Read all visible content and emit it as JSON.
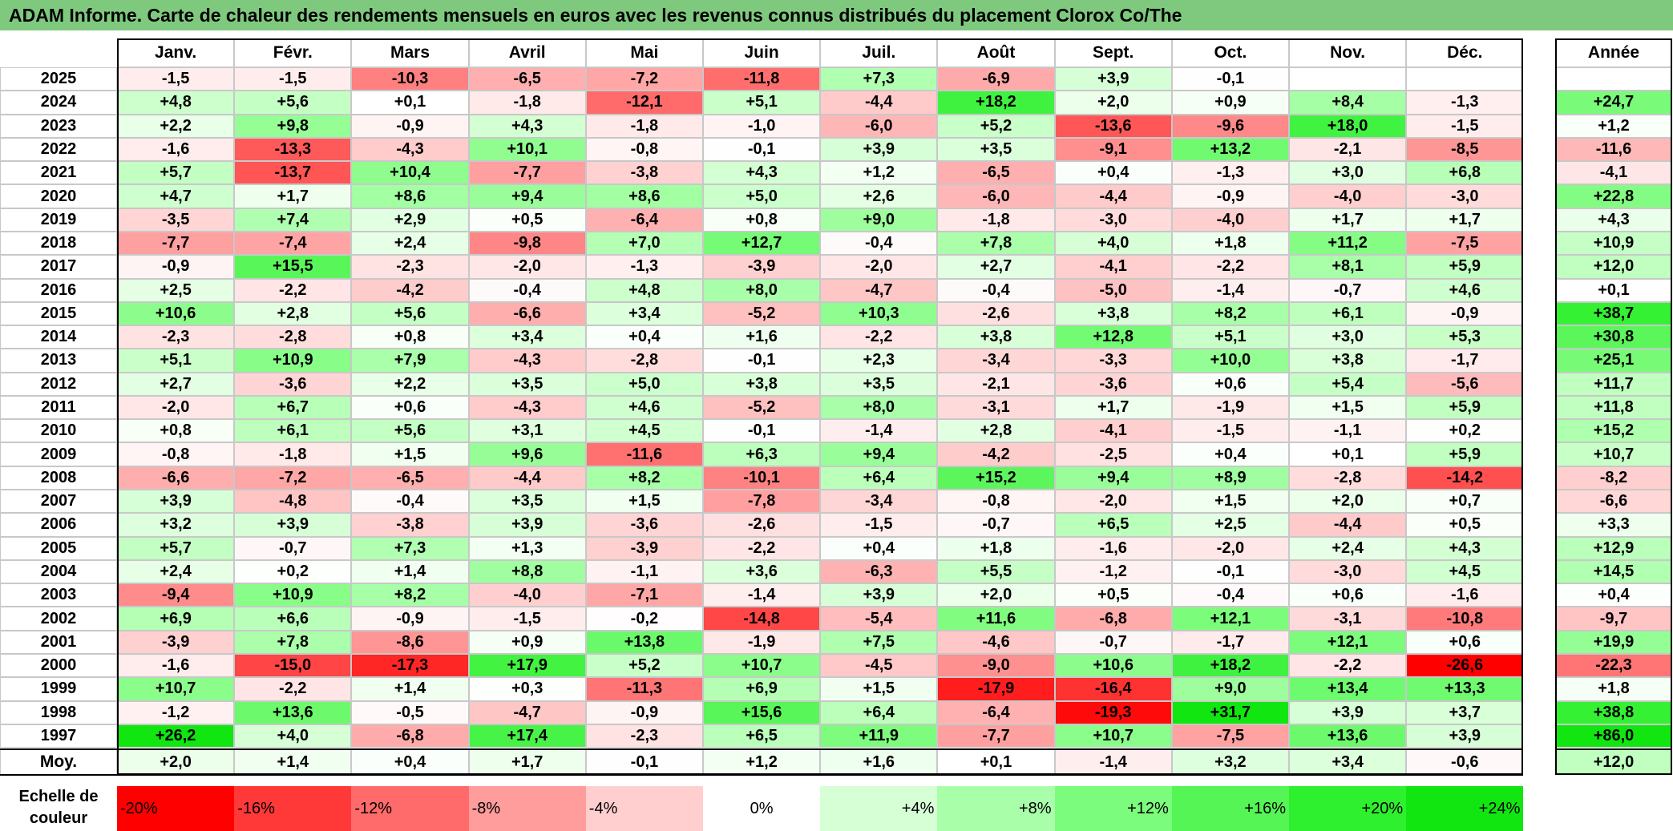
{
  "title": "ADAM Informe. Carte de chaleur des rendements mensuels en euros avec les revenus connus distribués du placement Clorox Co/The",
  "chart_data": {
    "type": "heatmap",
    "months": [
      "Janv.",
      "Févr.",
      "Mars",
      "Avril",
      "Mai",
      "Juin",
      "Juil.",
      "Août",
      "Sept.",
      "Oct.",
      "Nov.",
      "Déc."
    ],
    "year_header": "Année",
    "rows": [
      {
        "year": "2025",
        "values": [
          -1.5,
          -1.5,
          -10.3,
          -6.5,
          -7.2,
          -11.8,
          7.3,
          -6.9,
          3.9,
          -0.1,
          null,
          null
        ],
        "annual": null
      },
      {
        "year": "2024",
        "values": [
          4.8,
          5.6,
          0.1,
          -1.8,
          -12.1,
          5.1,
          -4.4,
          18.2,
          2.0,
          0.9,
          8.4,
          -1.3
        ],
        "annual": 24.7
      },
      {
        "year": "2023",
        "values": [
          2.2,
          9.8,
          -0.9,
          4.3,
          -1.8,
          -1.0,
          -6.0,
          5.2,
          -13.6,
          -9.6,
          18.0,
          -1.5
        ],
        "annual": 1.2
      },
      {
        "year": "2022",
        "values": [
          -1.6,
          -13.3,
          -4.3,
          10.1,
          -0.8,
          -0.1,
          3.9,
          3.5,
          -9.1,
          13.2,
          -2.1,
          -8.5
        ],
        "annual": -11.6
      },
      {
        "year": "2021",
        "values": [
          5.7,
          -13.7,
          10.4,
          -7.7,
          -3.8,
          4.3,
          1.2,
          -6.5,
          0.4,
          -1.3,
          3.0,
          6.8
        ],
        "annual": -4.1
      },
      {
        "year": "2020",
        "values": [
          4.7,
          1.7,
          8.6,
          9.4,
          8.6,
          5.0,
          2.6,
          -6.0,
          -4.4,
          -0.9,
          -4.0,
          -3.0
        ],
        "annual": 22.8
      },
      {
        "year": "2019",
        "values": [
          -3.5,
          7.4,
          2.9,
          0.5,
          -6.4,
          0.8,
          9.0,
          -1.8,
          -3.0,
          -4.0,
          1.7,
          1.7
        ],
        "annual": 4.3
      },
      {
        "year": "2018",
        "values": [
          -7.7,
          -7.4,
          2.4,
          -9.8,
          7.0,
          12.7,
          -0.4,
          7.8,
          4.0,
          1.8,
          11.2,
          -7.5
        ],
        "annual": 10.9
      },
      {
        "year": "2017",
        "values": [
          -0.9,
          15.5,
          -2.3,
          -2.0,
          -1.3,
          -3.9,
          -2.0,
          2.7,
          -4.1,
          -2.2,
          8.1,
          5.9
        ],
        "annual": 12.0
      },
      {
        "year": "2016",
        "values": [
          2.5,
          -2.2,
          -4.2,
          -0.4,
          4.8,
          8.0,
          -4.7,
          -0.4,
          -5.0,
          -1.4,
          -0.7,
          4.6
        ],
        "annual": 0.1
      },
      {
        "year": "2015",
        "values": [
          10.6,
          2.8,
          5.6,
          -6.6,
          3.4,
          -5.2,
          10.3,
          -2.6,
          3.8,
          8.2,
          6.1,
          -0.9
        ],
        "annual": 38.7
      },
      {
        "year": "2014",
        "values": [
          -2.3,
          -2.8,
          0.8,
          3.4,
          0.4,
          1.6,
          -2.2,
          3.8,
          12.8,
          5.1,
          3.0,
          5.3
        ],
        "annual": 30.8
      },
      {
        "year": "2013",
        "values": [
          5.1,
          10.9,
          7.9,
          -4.3,
          -2.8,
          -0.1,
          2.3,
          -3.4,
          -3.3,
          10.0,
          3.8,
          -1.7
        ],
        "annual": 25.1
      },
      {
        "year": "2012",
        "values": [
          2.7,
          -3.6,
          2.2,
          3.5,
          5.0,
          3.8,
          3.5,
          -2.1,
          -3.6,
          0.6,
          5.4,
          -5.6
        ],
        "annual": 11.7
      },
      {
        "year": "2011",
        "values": [
          -2.0,
          6.7,
          0.6,
          -4.3,
          4.6,
          -5.2,
          8.0,
          -3.1,
          1.7,
          -1.9,
          1.5,
          5.9
        ],
        "annual": 11.8
      },
      {
        "year": "2010",
        "values": [
          0.8,
          6.1,
          5.6,
          3.1,
          4.5,
          -0.1,
          -1.4,
          2.8,
          -4.1,
          -1.5,
          -1.1,
          0.2
        ],
        "annual": 15.2
      },
      {
        "year": "2009",
        "values": [
          -0.8,
          -1.8,
          1.5,
          9.6,
          -11.6,
          6.3,
          9.4,
          -4.2,
          -2.5,
          0.4,
          0.1,
          5.9
        ],
        "annual": 10.7
      },
      {
        "year": "2008",
        "values": [
          -6.6,
          -7.2,
          -6.5,
          -4.4,
          8.2,
          -10.1,
          6.4,
          15.2,
          9.4,
          8.9,
          -2.8,
          -14.2
        ],
        "annual": -8.2
      },
      {
        "year": "2007",
        "values": [
          3.9,
          -4.8,
          -0.4,
          3.5,
          1.5,
          -7.8,
          -3.4,
          -0.8,
          -2.0,
          1.5,
          2.0,
          0.7
        ],
        "annual": -6.6
      },
      {
        "year": "2006",
        "values": [
          3.2,
          3.9,
          -3.8,
          3.9,
          -3.6,
          -2.6,
          -1.5,
          -0.7,
          6.5,
          2.5,
          -4.4,
          0.5
        ],
        "annual": 3.3
      },
      {
        "year": "2005",
        "values": [
          5.7,
          -0.7,
          7.3,
          1.3,
          -3.9,
          -2.2,
          0.4,
          1.8,
          -1.6,
          -2.0,
          2.4,
          4.3
        ],
        "annual": 12.9
      },
      {
        "year": "2004",
        "values": [
          2.4,
          0.2,
          1.4,
          8.8,
          -1.1,
          3.6,
          -6.3,
          5.5,
          -1.2,
          -0.1,
          -3.0,
          4.5
        ],
        "annual": 14.5
      },
      {
        "year": "2003",
        "values": [
          -9.4,
          10.9,
          8.2,
          -4.0,
          -7.1,
          -1.4,
          3.9,
          2.0,
          0.5,
          -0.4,
          0.6,
          -1.6
        ],
        "annual": 0.4
      },
      {
        "year": "2002",
        "values": [
          6.9,
          6.6,
          -0.9,
          -1.5,
          -0.2,
          -14.8,
          -5.4,
          11.6,
          -6.8,
          12.1,
          -3.1,
          -10.8
        ],
        "annual": -9.7
      },
      {
        "year": "2001",
        "values": [
          -3.9,
          7.8,
          -8.6,
          0.9,
          13.8,
          -1.9,
          7.5,
          -4.6,
          -0.7,
          -1.7,
          12.1,
          0.6
        ],
        "annual": 19.9
      },
      {
        "year": "2000",
        "values": [
          -1.6,
          -15.0,
          -17.3,
          17.9,
          5.2,
          10.7,
          -4.5,
          -9.0,
          10.6,
          18.2,
          -2.2,
          -26.6
        ],
        "annual": -22.3
      },
      {
        "year": "1999",
        "values": [
          10.7,
          -2.2,
          1.4,
          0.3,
          -11.3,
          6.9,
          1.5,
          -17.9,
          -16.4,
          9.0,
          13.4,
          13.3
        ],
        "annual": 1.8
      },
      {
        "year": "1998",
        "values": [
          -1.2,
          13.6,
          -0.5,
          -4.7,
          -0.9,
          15.6,
          6.4,
          -6.4,
          -19.3,
          31.7,
          3.9,
          3.7
        ],
        "annual": 38.8
      },
      {
        "year": "1997",
        "values": [
          26.2,
          4.0,
          -6.8,
          17.4,
          -2.3,
          6.5,
          11.9,
          -7.7,
          10.7,
          -7.5,
          13.6,
          3.9
        ],
        "annual": 86.0
      }
    ],
    "average": {
      "label": "Moy.",
      "values": [
        2.0,
        1.4,
        0.4,
        1.7,
        -0.1,
        1.2,
        1.6,
        0.1,
        -1.4,
        3.2,
        3.4,
        -0.6
      ],
      "annual": 12.0
    },
    "color_scale": {
      "label_line1": "Echelle de",
      "label_line2": "couleur",
      "stops": [
        {
          "label": "-20%",
          "value": -20,
          "color": "#ff0000"
        },
        {
          "label": "-16%",
          "value": -16,
          "color": "#ff3838"
        },
        {
          "label": "-12%",
          "value": -12,
          "color": "#ff6b6b"
        },
        {
          "label": "-8%",
          "value": -8,
          "color": "#ff9c9c"
        },
        {
          "label": "-4%",
          "value": -4,
          "color": "#ffcfcf"
        },
        {
          "label": "0%",
          "value": 0,
          "color": "#ffffff"
        },
        {
          "label": "+4%",
          "value": 4,
          "color": "#d6ffd6"
        },
        {
          "label": "+8%",
          "value": 8,
          "color": "#a9ffa9"
        },
        {
          "label": "+12%",
          "value": 12,
          "color": "#7cfc7c"
        },
        {
          "label": "+16%",
          "value": 16,
          "color": "#54f554"
        },
        {
          "label": "+20%",
          "value": 20,
          "color": "#2ef02e"
        },
        {
          "label": "+24%",
          "value": 24,
          "color": "#11e611"
        }
      ]
    }
  }
}
